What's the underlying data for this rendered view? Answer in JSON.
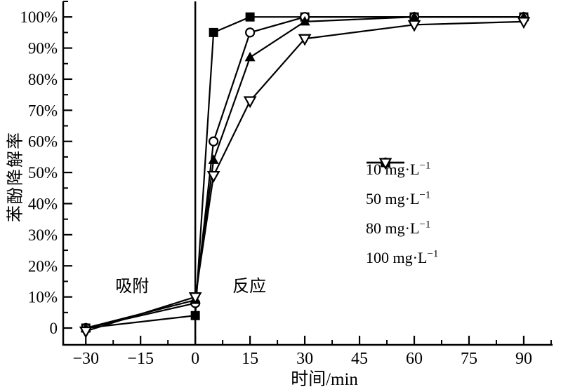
{
  "chart_data": {
    "type": "line",
    "title": "",
    "xlabel": "时间/min",
    "ylabel": "苯酚降解率",
    "xlim": [
      -36.2,
      97.9
    ],
    "ylim": [
      -5.4,
      105
    ],
    "grid": false,
    "legend_position": "middle-right, no frame",
    "separator_line_x": 0,
    "x_major_ticks": [
      {
        "v": -30,
        "label": "−30"
      },
      {
        "v": -15,
        "label": "−15"
      },
      {
        "v": 0,
        "label": "0"
      },
      {
        "v": 15,
        "label": "15"
      },
      {
        "v": 30,
        "label": "30"
      },
      {
        "v": 45,
        "label": "45"
      },
      {
        "v": 60,
        "label": "60"
      },
      {
        "v": 75,
        "label": "75"
      },
      {
        "v": 90,
        "label": "90"
      }
    ],
    "x_minor_ticks": [
      -22.5,
      -7.5,
      7.5,
      22.5,
      37.5,
      52.5,
      67.5,
      82.5,
      97.5
    ],
    "y_major_ticks": [
      {
        "v": 0,
        "label": "0"
      },
      {
        "v": 10,
        "label": "10%"
      },
      {
        "v": 20,
        "label": "20%"
      },
      {
        "v": 30,
        "label": "30%"
      },
      {
        "v": 40,
        "label": "40%"
      },
      {
        "v": 50,
        "label": "50%"
      },
      {
        "v": 60,
        "label": "60%"
      },
      {
        "v": 70,
        "label": "70%"
      },
      {
        "v": 80,
        "label": "80%"
      },
      {
        "v": 90,
        "label": "90%"
      },
      {
        "v": 100,
        "label": "100%"
      }
    ],
    "y_minor_ticks": [
      5,
      15,
      25,
      35,
      45,
      55,
      65,
      75,
      85,
      95,
      105
    ],
    "annotations": [
      {
        "text": "吸附",
        "x": -17.3,
        "y": 13.5
      },
      {
        "text": "反应",
        "x": 14.8,
        "y": 13.5
      }
    ],
    "series": [
      {
        "name": "10 mg·L⁻¹",
        "label_base": "10 mg·L",
        "label_sup": "−1",
        "marker": "filled-square",
        "color": "#000000",
        "x": [
          -30,
          0,
          5,
          15,
          30,
          60,
          90
        ],
        "y": [
          0,
          4,
          95,
          100,
          100,
          100,
          100
        ]
      },
      {
        "name": "50 mg·L⁻¹",
        "label_base": "50 mg·L",
        "label_sup": "−1",
        "marker": "open-circle",
        "color": "#000000",
        "x": [
          -30,
          0,
          5,
          15,
          30,
          60,
          90
        ],
        "y": [
          0,
          8,
          60,
          95,
          100,
          100,
          100
        ]
      },
      {
        "name": "80 mg·L⁻¹",
        "label_base": "80 mg·L",
        "label_sup": "−1",
        "marker": "filled-triangle-up",
        "color": "#000000",
        "x": [
          -30,
          0,
          5,
          15,
          30,
          60,
          90
        ],
        "y": [
          0,
          9,
          54,
          87,
          98.5,
          100,
          100
        ]
      },
      {
        "name": "100 mg·L⁻¹",
        "label_base": "100 mg·L",
        "label_sup": "−1",
        "marker": "open-triangle-down",
        "color": "#000000",
        "x": [
          -30,
          0,
          5,
          15,
          30,
          60,
          90
        ],
        "y": [
          -1,
          10,
          49,
          73,
          93,
          97.5,
          98.5
        ]
      }
    ],
    "axis_color": "#000000",
    "background_color": "#ffffff"
  }
}
